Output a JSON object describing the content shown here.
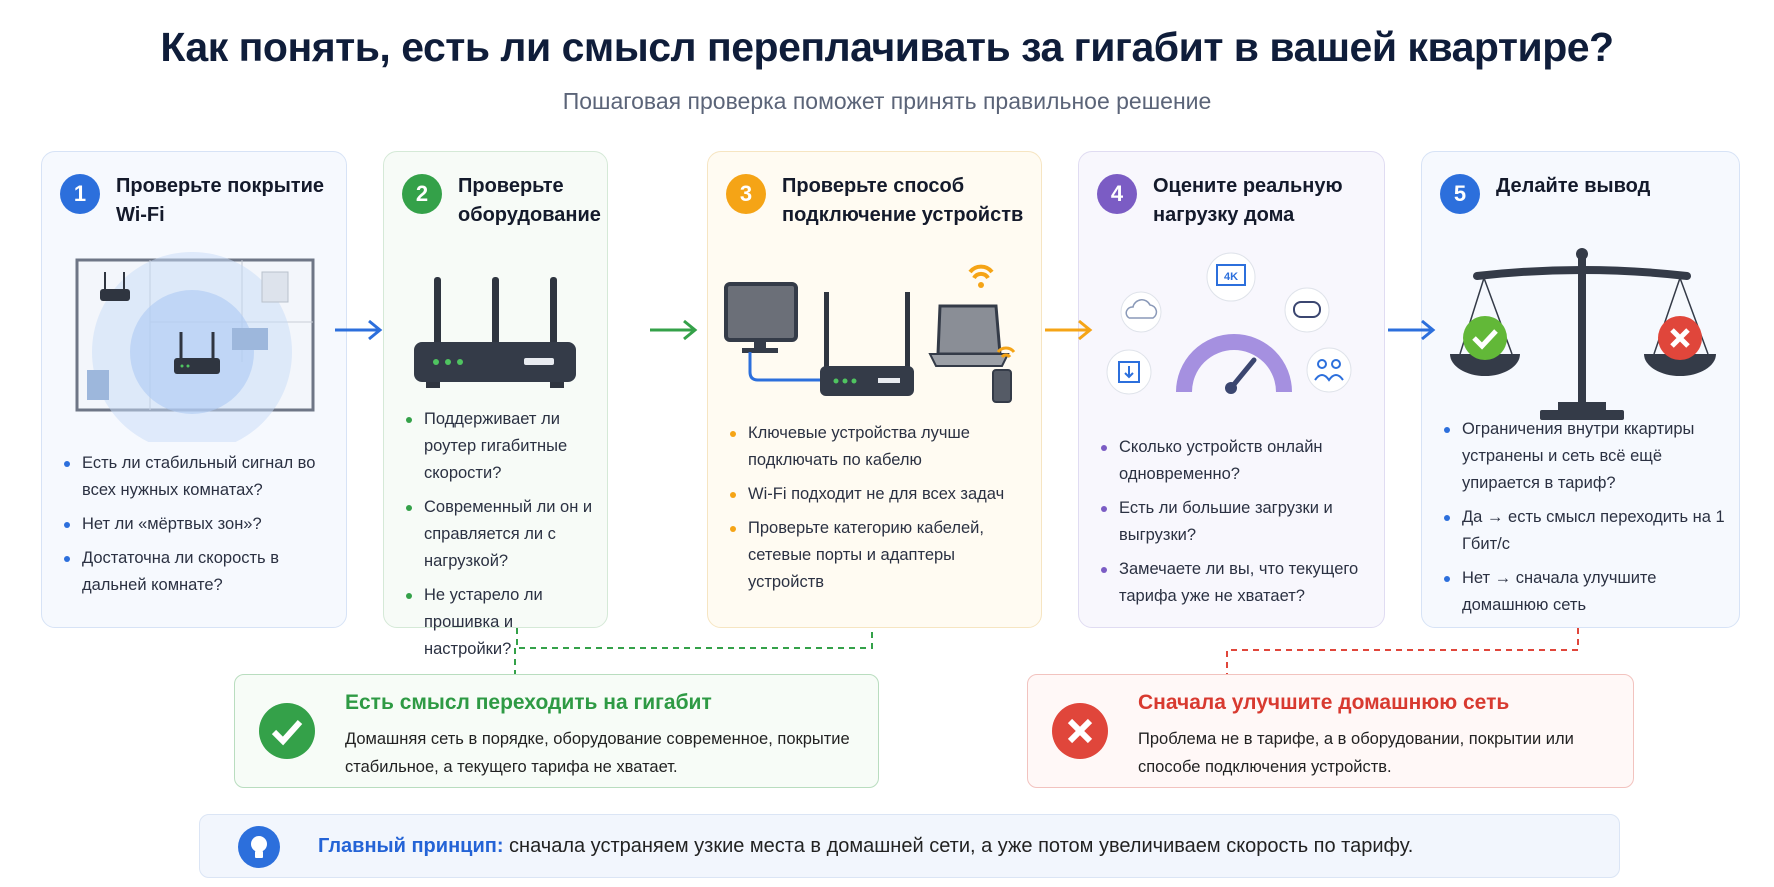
{
  "header": {
    "title": "Как понять, есть ли смысл переплачивать за гигабит в вашей квартире?",
    "subtitle": "Пошаговая проверка поможет принять правильное решение"
  },
  "colors": {
    "blue": "#2c6fdc",
    "green": "#34a149",
    "orange": "#f5a416",
    "purple": "#7b5cc4",
    "red": "#e0463b",
    "dark": "#343b48"
  },
  "steps": [
    {
      "number": "1",
      "title": "Проверьте покрытие Wi-Fi",
      "icon": "floorplan-wifi-coverage-icon",
      "bullets": [
        "Есть ли стабильный сигнал во всех нужных комнатах?",
        "Нет ли «мёртвых зон»?",
        "Достаточна ли скорость в дальней комнате?"
      ]
    },
    {
      "number": "2",
      "title": "Проверьте оборудование",
      "icon": "router-icon",
      "bullets": [
        "Поддерживает ли роутер гигабитные скорости?",
        "Современный ли он и справляется ли с нагрузкой?",
        "Не устарело ли прошивка и настройки?"
      ]
    },
    {
      "number": "3",
      "title": "Проверьте способ подключение устройств",
      "icon": "devices-connection-icon",
      "bullets": [
        "Ключевые устройства лучше подключать по кабелю",
        "Wi-Fi подходит не для всех задач",
        "Проверьте категорию кабелей, сетевые порты и адаптеры устройств"
      ]
    },
    {
      "number": "4",
      "title": "Оцените реальную нагрузку дома",
      "icon": "speedometer-load-icon",
      "badge": "4K",
      "bullets": [
        "Сколько устройств онлайн одновременно?",
        "Есть ли большие загрузки и выгрузки?",
        "Замечаете ли вы, что текущего тарифа уже не хватает?"
      ]
    },
    {
      "number": "5",
      "title": "Делайте вывод",
      "icon": "scales-icon",
      "bullets": [
        "Ограничения внутри ккартиры устранены и сеть всё ещё упирается в тариф?",
        "Да → есть смысл переходить на 1 Гбит/с",
        "Нет → сначала улучшите домашнюю сеть"
      ]
    }
  ],
  "outcomes": {
    "yes": {
      "title": "Есть смысл переходить на гигабит",
      "text": "Домашняя сеть в порядке, оборудование современное, покрытие стабильное, а текущего тарифа не хватает."
    },
    "no": {
      "title": "Сначала улучшите домашнюю сеть",
      "text": "Проблема не в тарифе, а в оборудовании, покрытии или способе подключения устройств."
    }
  },
  "principle": {
    "label": "Главный принцип:",
    "text": " сначала устраняем узкие места в домашней сети, а уже потом увеличиваем скорость по тарифу."
  }
}
